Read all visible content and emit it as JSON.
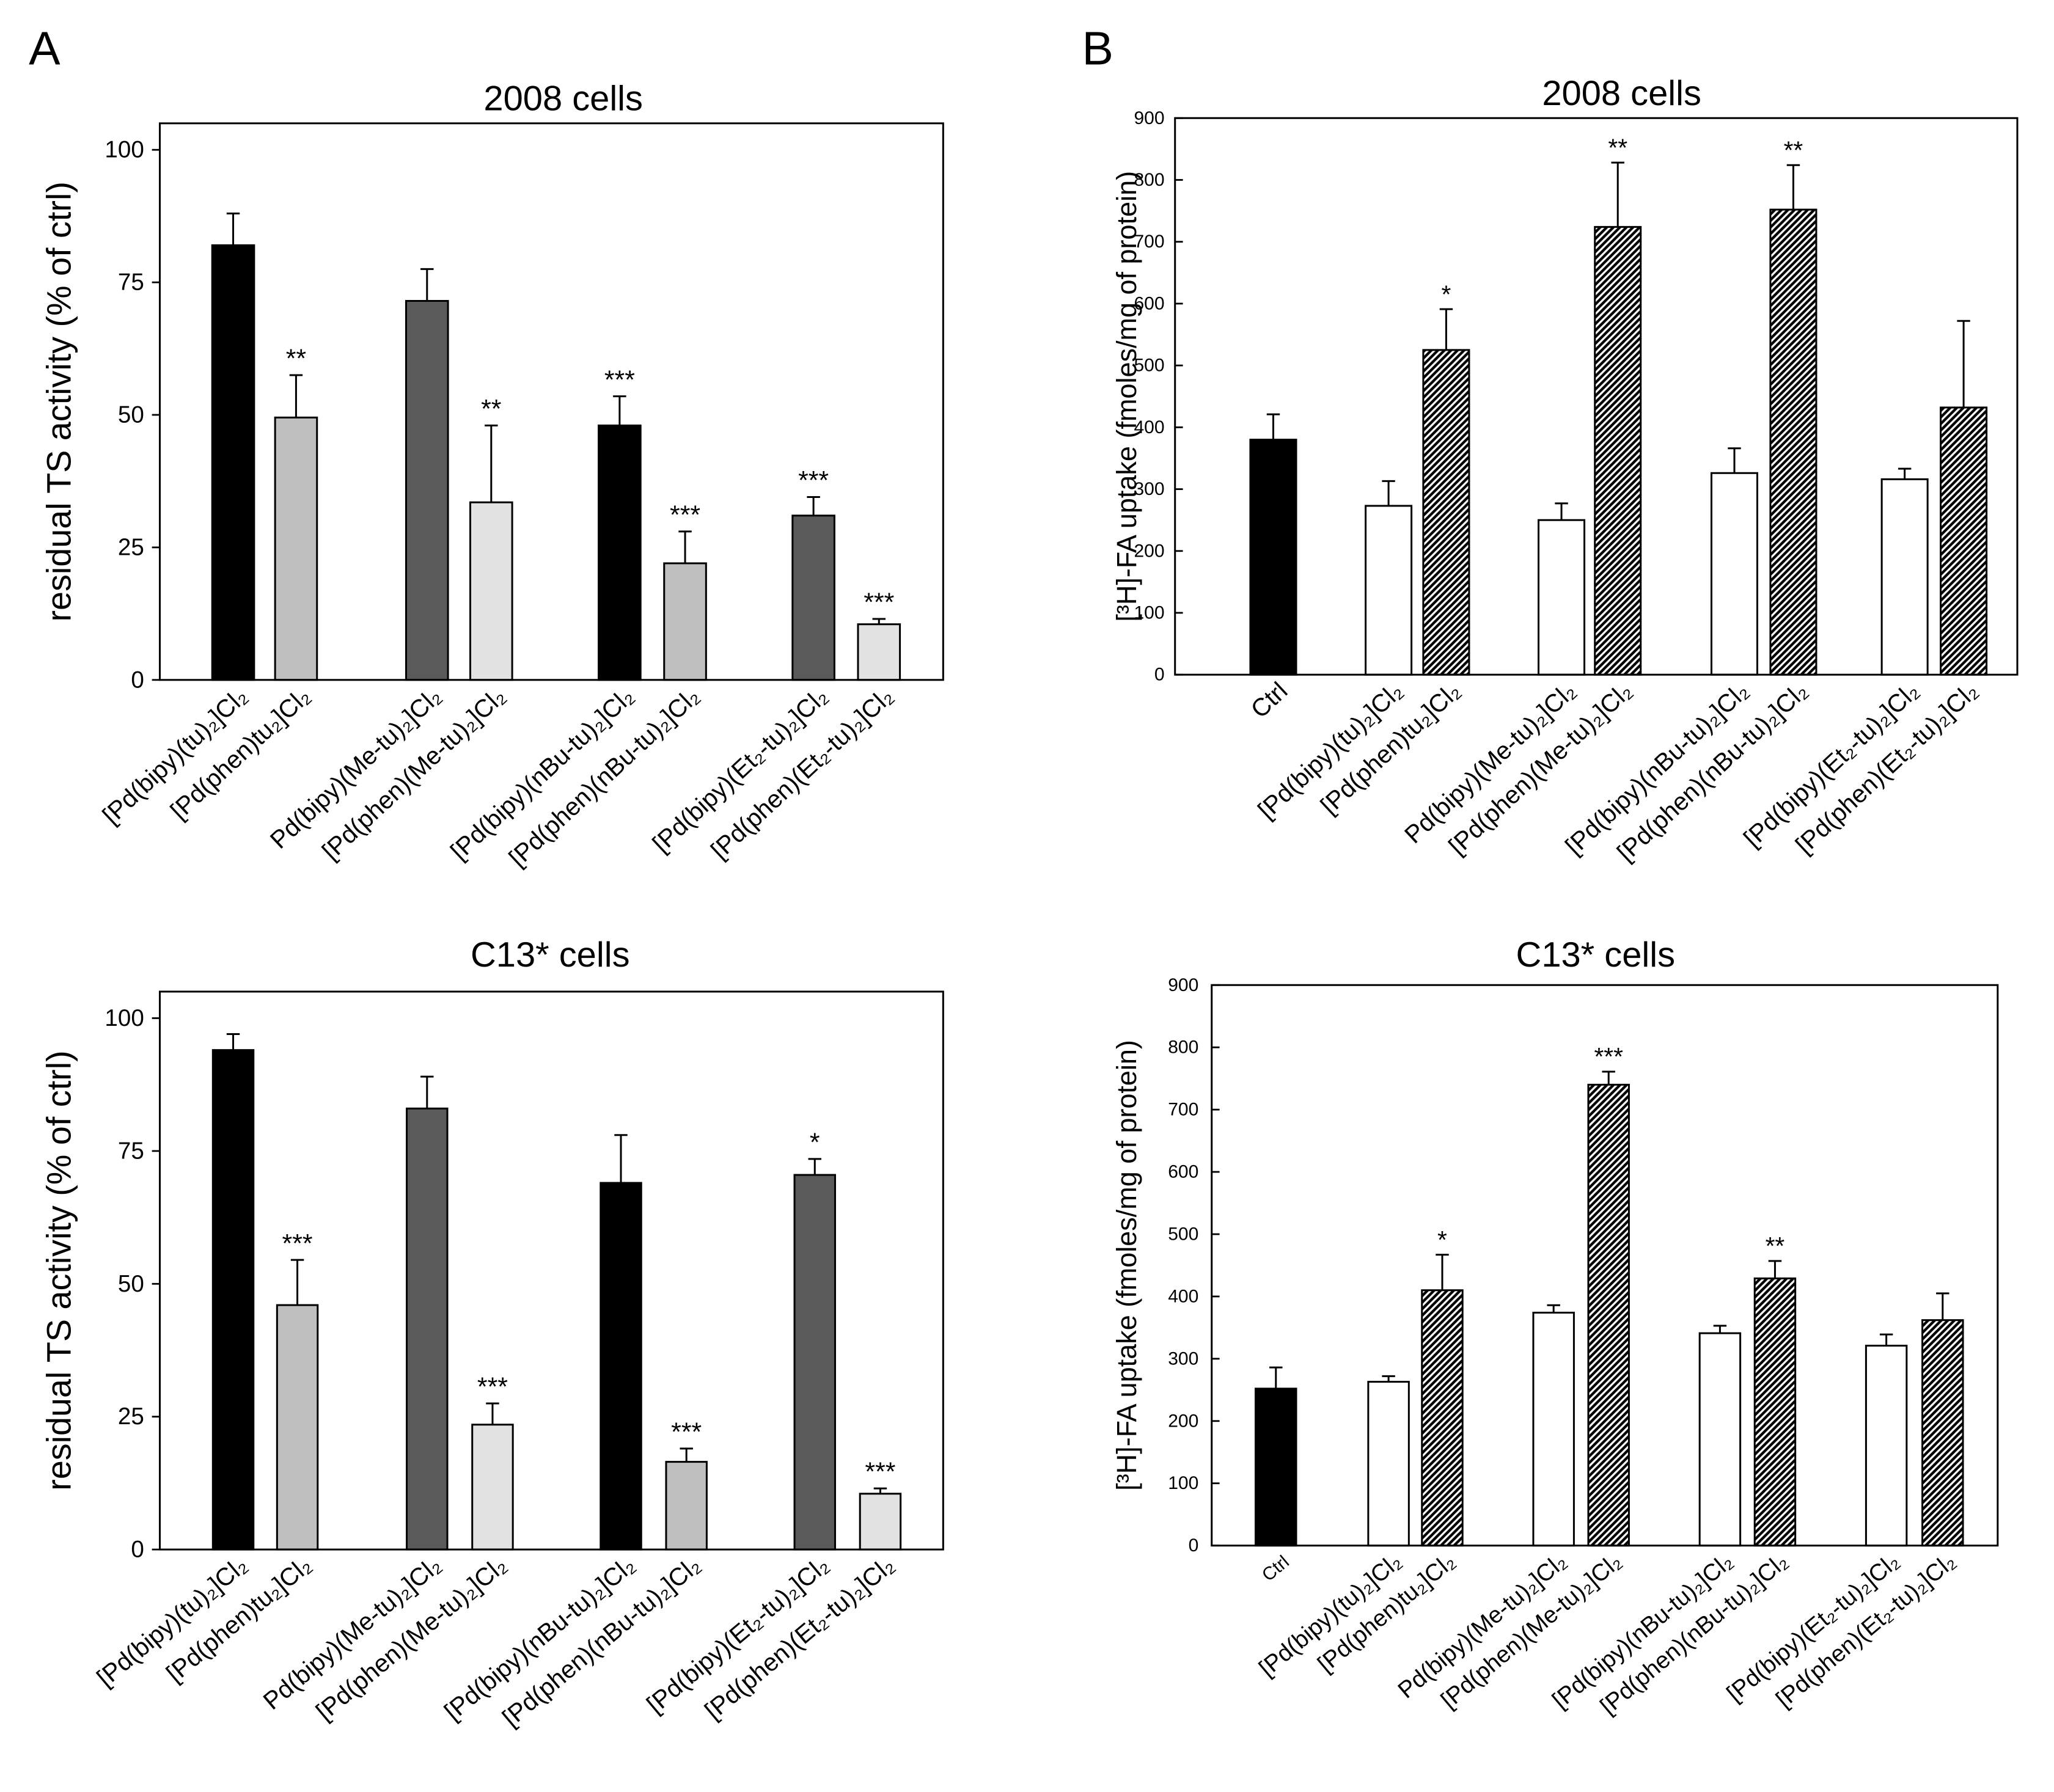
{
  "panel_labels": [
    "A",
    "B"
  ],
  "chart_data": [
    {
      "type": "bar",
      "title": "2008 cells",
      "ylabel": "residual TS activity (% of ctrl)",
      "ylim": [
        0,
        105
      ],
      "yticks": [
        0,
        25,
        50,
        75,
        100
      ],
      "categories": [
        "[Pd(bipy)(tu)₂]Cl₂",
        "[Pd(phen)tu₂]Cl₂",
        "Pd(bipy)(Me-tu)₂]Cl₂",
        "[Pd(phen)(Me-tu)₂]Cl₂",
        "[Pd(bipy)(nBu-tu)₂]Cl₂",
        "[Pd(phen)(nBu-tu)₂]Cl₂",
        "[Pd(bipy)(Et₂-tu)₂]Cl₂",
        "[Pd(phen)(Et₂-tu)₂]Cl₂"
      ],
      "values": [
        82,
        49.5,
        71.5,
        33.5,
        48,
        22,
        31,
        10.5
      ],
      "errors": [
        6,
        8,
        6,
        14.5,
        5.5,
        6,
        3.5,
        1
      ],
      "significance": [
        "",
        "**",
        "",
        "**",
        "***",
        "***",
        "***",
        "***"
      ],
      "colors": [
        "#000000",
        "#bfbfbf",
        "#5a5a5a",
        "#e2e2e2",
        "#000000",
        "#bfbfbf",
        "#5a5a5a",
        "#e2e2e2"
      ],
      "hatched": [
        false,
        false,
        false,
        false,
        false,
        false,
        false,
        false
      ]
    },
    {
      "type": "bar",
      "title": "2008 cells",
      "ylabel": "[³H]-FA uptake (fmoles/mg of protein)",
      "ylim": [
        0,
        900
      ],
      "yticks": [
        0,
        100,
        200,
        300,
        400,
        500,
        600,
        700,
        800,
        900
      ],
      "categories": [
        "Ctrl",
        "[Pd(bipy)(tu)₂]Cl₂",
        "[Pd(phen)tu₂]Cl₂",
        "Pd(bipy)(Me-tu)₂]Cl₂",
        "[Pd(phen)(Me-tu)₂]Cl₂",
        "[Pd(bipy)(nBu-tu)₂]Cl₂",
        "[Pd(phen)(nBu-tu)₂]Cl₂",
        "[Pd(bipy)(Et₂-tu)₂]Cl₂",
        "[Pd(phen)(Et₂-tu)₂]Cl₂"
      ],
      "values": [
        380,
        273,
        525,
        250,
        724,
        326,
        752,
        316,
        432
      ],
      "errors": [
        41,
        40,
        66,
        27,
        104,
        40,
        72,
        17,
        140
      ],
      "significance": [
        "",
        "",
        "*",
        "",
        "**",
        "",
        "**",
        "",
        ""
      ],
      "colors": [
        "#000000",
        "#ffffff",
        "#ffffff",
        "#ffffff",
        "#ffffff",
        "#ffffff",
        "#ffffff",
        "#ffffff",
        "#ffffff"
      ],
      "hatched": [
        false,
        false,
        true,
        false,
        true,
        false,
        true,
        false,
        true
      ]
    },
    {
      "type": "bar",
      "title": "C13* cells",
      "ylabel": "residual TS activity (% of ctrl)",
      "ylim": [
        0,
        105
      ],
      "yticks": [
        0,
        25,
        50,
        75,
        100
      ],
      "categories": [
        "[Pd(bipy)(tu)₂]Cl₂",
        "[Pd(phen)tu₂]Cl₂",
        "Pd(bipy)(Me-tu)₂]Cl₂",
        "[Pd(phen)(Me-tu)₂]Cl₂",
        "[Pd(bipy)(nBu-tu)₂]Cl₂",
        "[Pd(phen)(nBu-tu)₂]Cl₂",
        "[Pd(bipy)(Et₂-tu)₂]Cl₂",
        "[Pd(phen)(Et₂-tu)₂]Cl₂"
      ],
      "values": [
        94,
        46,
        83,
        23.5,
        69,
        16.5,
        70.5,
        10.5
      ],
      "errors": [
        3,
        8.5,
        6,
        4,
        9,
        2.5,
        3,
        1
      ],
      "significance": [
        "",
        "***",
        "",
        "***",
        "",
        "***",
        "*",
        "***"
      ],
      "colors": [
        "#000000",
        "#bfbfbf",
        "#5a5a5a",
        "#e2e2e2",
        "#000000",
        "#bfbfbf",
        "#5a5a5a",
        "#e2e2e2"
      ],
      "hatched": [
        false,
        false,
        false,
        false,
        false,
        false,
        false,
        false
      ]
    },
    {
      "type": "bar",
      "title": "C13* cells",
      "ylabel": "[³H]-FA uptake (fmoles/mg of protein)",
      "ylim": [
        0,
        900
      ],
      "yticks": [
        0,
        100,
        200,
        300,
        400,
        500,
        600,
        700,
        800,
        900
      ],
      "categories": [
        "Ctrl",
        "[Pd(bipy)(tu)₂]Cl₂",
        "[Pd(phen)tu₂]Cl₂",
        "Pd(bipy)(Me-tu)₂]Cl₂",
        "[Pd(phen)(Me-tu)₂]Cl₂",
        "[Pd(bipy)(nBu-tu)₂]Cl₂",
        "[Pd(phen)(nBu-tu)₂]Cl₂",
        "[Pd(bipy)(Et₂-tu)₂]Cl₂",
        "[Pd(phen)(Et₂-tu)₂]Cl₂"
      ],
      "values": [
        252,
        263,
        410,
        374,
        740,
        341,
        429,
        321,
        362
      ],
      "errors": [
        34,
        9,
        57,
        12,
        21,
        12,
        28,
        18,
        43
      ],
      "significance": [
        "",
        "",
        "*",
        "",
        "***",
        "",
        "**",
        "",
        ""
      ],
      "colors": [
        "#000000",
        "#ffffff",
        "#ffffff",
        "#ffffff",
        "#ffffff",
        "#ffffff",
        "#ffffff",
        "#ffffff",
        "#ffffff"
      ],
      "hatched": [
        false,
        false,
        true,
        false,
        true,
        false,
        true,
        false,
        true
      ]
    }
  ]
}
